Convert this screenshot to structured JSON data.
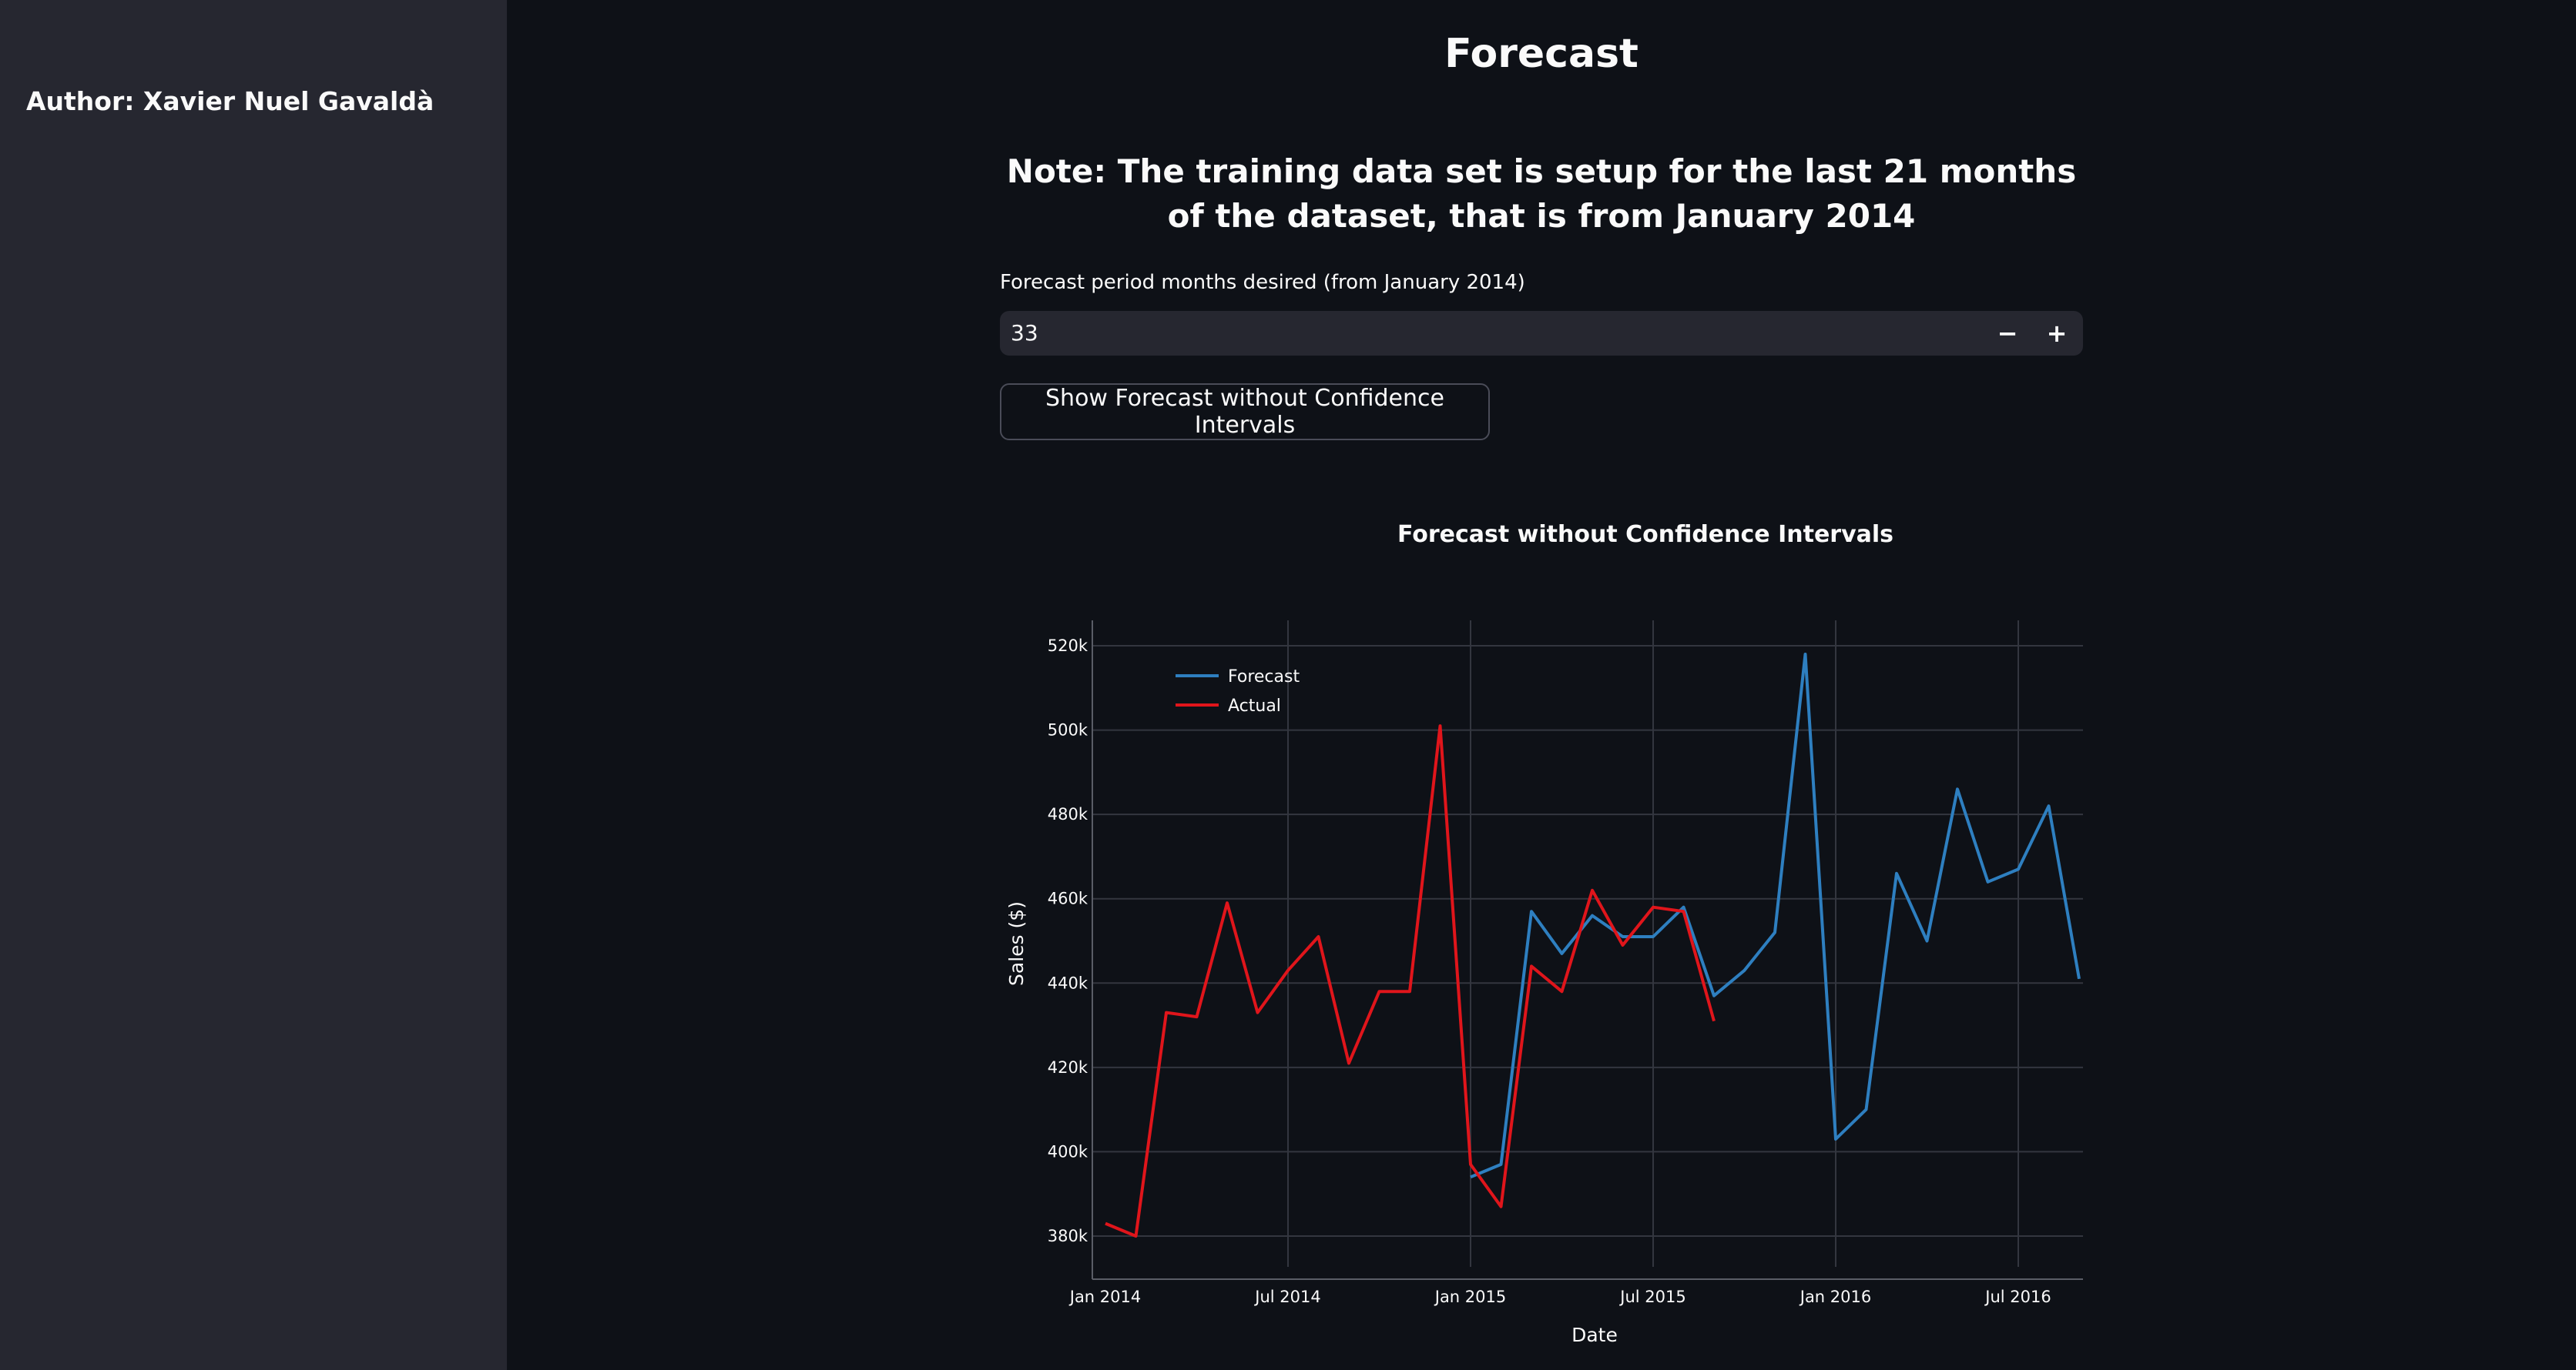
{
  "sidebar": {
    "author": "Author: Xavier Nuel Gavaldà"
  },
  "main": {
    "title": "Forecast",
    "note": "Note: The training data set is setup for the last 21 months of the dataset, that is from January 2014",
    "input_label": "Forecast period months desired (from January 2014)",
    "input_value": "33",
    "minus_label": "−",
    "plus_label": "+",
    "button_label": "Show Forecast without Confidence Intervals"
  },
  "chart_data": {
    "type": "line",
    "title": "Forecast without Confidence Intervals",
    "xlabel": "Date",
    "ylabel": "Sales ($)",
    "x_ticks": [
      "Jan 2014",
      "Jul 2014",
      "Jan 2015",
      "Jul 2015",
      "Jan 2016",
      "Jul 2016"
    ],
    "y_ticks": [
      "380k",
      "400k",
      "420k",
      "440k",
      "460k",
      "480k",
      "500k",
      "520k"
    ],
    "ylim": [
      374000,
      526000
    ],
    "grid": true,
    "legend_position": "top-left",
    "series": [
      {
        "name": "Forecast",
        "color": "#2e7fc0",
        "x": [
          "2015-01",
          "2015-02",
          "2015-03",
          "2015-04",
          "2015-05",
          "2015-06",
          "2015-07",
          "2015-08",
          "2015-09",
          "2015-10",
          "2015-11",
          "2015-12",
          "2016-01",
          "2016-02",
          "2016-03",
          "2016-04",
          "2016-05",
          "2016-06",
          "2016-07",
          "2016-08",
          "2016-09"
        ],
        "y": [
          394000,
          397000,
          457000,
          447000,
          456000,
          451000,
          451000,
          458000,
          437000,
          443000,
          452000,
          518000,
          403000,
          410000,
          466000,
          450000,
          486000,
          464000,
          467000,
          482000,
          441000
        ]
      },
      {
        "name": "Actual",
        "color": "#e0151b",
        "x": [
          "2014-01",
          "2014-02",
          "2014-03",
          "2014-04",
          "2014-05",
          "2014-06",
          "2014-07",
          "2014-08",
          "2014-09",
          "2014-10",
          "2014-11",
          "2014-12",
          "2015-01",
          "2015-02",
          "2015-03",
          "2015-04",
          "2015-05",
          "2015-06",
          "2015-07",
          "2015-08",
          "2015-09"
        ],
        "y": [
          383000,
          380000,
          433000,
          432000,
          459000,
          433000,
          443000,
          451000,
          421000,
          438000,
          438000,
          501000,
          397000,
          387000,
          444000,
          438000,
          462000,
          449000,
          458000,
          457000,
          431000
        ]
      }
    ]
  }
}
